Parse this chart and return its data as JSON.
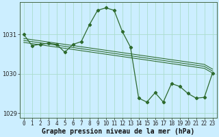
{
  "xlabel": "Graphe pression niveau de la mer (hPa)",
  "background_color": "#cceeff",
  "plot_bg_color": "#cceeff",
  "grid_color": "#aaddcc",
  "line_color": "#2d6a2d",
  "x": [
    0,
    1,
    2,
    3,
    4,
    5,
    6,
    7,
    8,
    9,
    10,
    11,
    12,
    13,
    14,
    15,
    16,
    17,
    18,
    19,
    20,
    21,
    22,
    23
  ],
  "y_main": [
    1031.0,
    1030.72,
    1030.75,
    1030.78,
    1030.75,
    1030.55,
    1030.75,
    1030.82,
    1031.25,
    1031.62,
    1031.68,
    1031.62,
    1031.08,
    1030.68,
    1029.38,
    1029.28,
    1029.52,
    1029.28,
    1029.75,
    1029.68,
    1029.5,
    1029.38,
    1029.4,
    1030.02
  ],
  "trend_line1": [
    1030.8,
    1030.77,
    1030.74,
    1030.71,
    1030.68,
    1030.65,
    1030.62,
    1030.59,
    1030.56,
    1030.53,
    1030.5,
    1030.47,
    1030.44,
    1030.41,
    1030.38,
    1030.35,
    1030.32,
    1030.29,
    1030.26,
    1030.23,
    1030.2,
    1030.17,
    1030.14,
    1030.02
  ],
  "trend_line2": [
    1030.85,
    1030.82,
    1030.79,
    1030.76,
    1030.73,
    1030.7,
    1030.67,
    1030.64,
    1030.61,
    1030.58,
    1030.55,
    1030.52,
    1030.49,
    1030.46,
    1030.43,
    1030.4,
    1030.37,
    1030.34,
    1030.31,
    1030.28,
    1030.25,
    1030.22,
    1030.19,
    1030.07
  ],
  "trend_line3": [
    1030.9,
    1030.87,
    1030.84,
    1030.81,
    1030.78,
    1030.75,
    1030.72,
    1030.69,
    1030.66,
    1030.63,
    1030.6,
    1030.57,
    1030.54,
    1030.51,
    1030.48,
    1030.45,
    1030.42,
    1030.39,
    1030.36,
    1030.33,
    1030.3,
    1030.27,
    1030.24,
    1030.12
  ],
  "ylim": [
    1028.88,
    1031.82
  ],
  "yticks": [
    1029,
    1030,
    1031
  ],
  "xticks": [
    0,
    1,
    2,
    3,
    4,
    5,
    6,
    7,
    8,
    9,
    10,
    11,
    12,
    13,
    14,
    15,
    16,
    17,
    18,
    19,
    20,
    21,
    22,
    23
  ],
  "tick_label_fontsize": 5.5,
  "xlabel_fontsize": 7.0,
  "markersize": 2.2,
  "linewidth": 0.9
}
